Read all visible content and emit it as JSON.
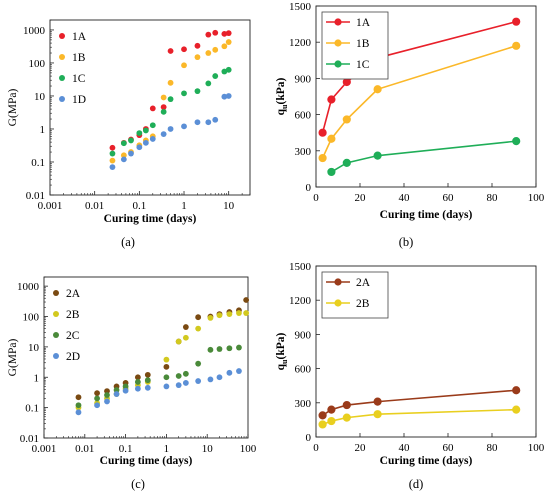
{
  "chart_data": [
    {
      "panel": "a",
      "caption": "(a)",
      "type": "scatter",
      "xscale": "log",
      "yscale": "log",
      "xlabel": "Curing time (days)",
      "ylabel": "G(MPa)",
      "xlim": [
        0.001,
        30
      ],
      "ylim": [
        0.01,
        2000
      ],
      "xticks": [
        0.001,
        0.01,
        0.1,
        1,
        10
      ],
      "xtick_labels": [
        "0.001",
        "0.01",
        "0.1",
        "1",
        "10"
      ],
      "yticks": [
        0.01,
        0.1,
        1,
        10,
        100,
        1000
      ],
      "ytick_labels": [
        "0.01",
        "0.1",
        "1",
        "10",
        "100",
        "1000"
      ],
      "legend_position": "top-left",
      "series": [
        {
          "name": "1A",
          "color": "#e8202a",
          "points": [
            [
              0.025,
              0.27
            ],
            [
              0.045,
              0.38
            ],
            [
              0.065,
              0.48
            ],
            [
              0.1,
              0.65
            ],
            [
              0.14,
              1.0
            ],
            [
              0.2,
              4.2
            ],
            [
              0.35,
              4.6
            ],
            [
              0.5,
              230
            ],
            [
              1.0,
              260
            ],
            [
              2.0,
              330
            ],
            [
              3.5,
              720
            ],
            [
              5,
              820
            ],
            [
              8,
              760
            ],
            [
              10,
              800
            ]
          ]
        },
        {
          "name": "1B",
          "color": "#fbb829",
          "points": [
            [
              0.025,
              0.11
            ],
            [
              0.045,
              0.16
            ],
            [
              0.065,
              0.2
            ],
            [
              0.1,
              0.32
            ],
            [
              0.14,
              0.45
            ],
            [
              0.2,
              0.6
            ],
            [
              0.35,
              9.0
            ],
            [
              0.5,
              25
            ],
            [
              1.0,
              85
            ],
            [
              2.0,
              150
            ],
            [
              3.5,
              200
            ],
            [
              5,
              250
            ],
            [
              8,
              320
            ],
            [
              10,
              430
            ]
          ]
        },
        {
          "name": "1C",
          "color": "#1fae58",
          "points": [
            [
              0.025,
              0.18
            ],
            [
              0.045,
              0.37
            ],
            [
              0.065,
              0.45
            ],
            [
              0.1,
              0.75
            ],
            [
              0.14,
              0.9
            ],
            [
              0.2,
              1.3
            ],
            [
              0.35,
              3.3
            ],
            [
              0.5,
              8.0
            ],
            [
              1.0,
              12
            ],
            [
              2.0,
              14
            ],
            [
              3.5,
              24
            ],
            [
              5,
              40
            ],
            [
              8,
              55
            ],
            [
              10,
              62
            ]
          ]
        },
        {
          "name": "1D",
          "color": "#5b8fd6",
          "points": [
            [
              0.025,
              0.07
            ],
            [
              0.045,
              0.12
            ],
            [
              0.065,
              0.18
            ],
            [
              0.1,
              0.28
            ],
            [
              0.14,
              0.38
            ],
            [
              0.2,
              0.5
            ],
            [
              0.35,
              0.7
            ],
            [
              0.5,
              1.0
            ],
            [
              1.0,
              1.2
            ],
            [
              2.0,
              1.6
            ],
            [
              3.5,
              1.6
            ],
            [
              5,
              1.9
            ],
            [
              8,
              9.5
            ],
            [
              10,
              10
            ]
          ]
        }
      ]
    },
    {
      "panel": "b",
      "caption": "(b)",
      "type": "line",
      "xlabel": "Curing time (days)",
      "ylabel": "q",
      "ylabel_sub": "u",
      "ylabel_suffix": "(kPa)",
      "xlim": [
        0,
        100
      ],
      "ylim": [
        0,
        1500
      ],
      "xticks": [
        0,
        20,
        40,
        60,
        80,
        100
      ],
      "xtick_labels": [
        "0",
        "20",
        "40",
        "60",
        "80",
        "100"
      ],
      "yticks": [
        0,
        300,
        600,
        900,
        1200,
        1500
      ],
      "ytick_labels": [
        "0",
        "300",
        "600",
        "900",
        "1200",
        "1500"
      ],
      "legend_position": "top-left",
      "series": [
        {
          "name": "1A",
          "color": "#e8202a",
          "x": [
            3,
            7,
            14,
            28,
            91
          ],
          "y": [
            450,
            725,
            870,
            1070,
            1370
          ]
        },
        {
          "name": "1B",
          "color": "#fbb829",
          "x": [
            3,
            7,
            14,
            28,
            91
          ],
          "y": [
            240,
            400,
            560,
            810,
            1170
          ]
        },
        {
          "name": "1C",
          "color": "#1fae58",
          "x": [
            7,
            14,
            28,
            91
          ],
          "y": [
            125,
            200,
            260,
            380
          ]
        }
      ]
    },
    {
      "panel": "c",
      "caption": "(c)",
      "type": "scatter",
      "xscale": "log",
      "yscale": "log",
      "xlabel": "Curing time (days)",
      "ylabel": "G(MPa)",
      "xlim": [
        0.001,
        100
      ],
      "ylim": [
        0.01,
        2000
      ],
      "xticks": [
        0.001,
        0.01,
        0.1,
        1,
        10,
        100
      ],
      "xtick_labels": [
        "0.001",
        "0.01",
        "0.1",
        "1",
        "10",
        "100"
      ],
      "yticks": [
        0.01,
        0.1,
        1,
        10,
        100,
        1000
      ],
      "ytick_labels": [
        "0.01",
        "0.1",
        "1",
        "10",
        "100",
        "1000"
      ],
      "legend_position": "top-left",
      "series": [
        {
          "name": "2A",
          "color": "#7a4a12",
          "points": [
            [
              0.007,
              0.22
            ],
            [
              0.02,
              0.3
            ],
            [
              0.035,
              0.35
            ],
            [
              0.06,
              0.5
            ],
            [
              0.1,
              0.65
            ],
            [
              0.2,
              1.0
            ],
            [
              0.35,
              1.2
            ],
            [
              1.0,
              2.2
            ],
            [
              2.0,
              15
            ],
            [
              3.0,
              45
            ],
            [
              6,
              95
            ],
            [
              12,
              100
            ],
            [
              20,
              120
            ],
            [
              35,
              140
            ],
            [
              60,
              160
            ],
            [
              90,
              350
            ]
          ]
        },
        {
          "name": "2B",
          "color": "#d2c91f",
          "points": [
            [
              0.007,
              0.1
            ],
            [
              0.02,
              0.14
            ],
            [
              0.035,
              0.2
            ],
            [
              0.06,
              0.28
            ],
            [
              0.1,
              0.42
            ],
            [
              0.2,
              0.55
            ],
            [
              0.35,
              0.7
            ],
            [
              1.0,
              3.8
            ],
            [
              2.0,
              15
            ],
            [
              3.0,
              20
            ],
            [
              6,
              40
            ],
            [
              12,
              90
            ],
            [
              20,
              110
            ],
            [
              35,
              120
            ],
            [
              60,
              130
            ],
            [
              90,
              130
            ]
          ]
        },
        {
          "name": "2C",
          "color": "#4a8a3a",
          "points": [
            [
              0.007,
              0.12
            ],
            [
              0.02,
              0.2
            ],
            [
              0.035,
              0.26
            ],
            [
              0.06,
              0.38
            ],
            [
              0.1,
              0.5
            ],
            [
              0.2,
              0.7
            ],
            [
              0.35,
              0.8
            ],
            [
              1.0,
              1.0
            ],
            [
              2.0,
              1.1
            ],
            [
              3.0,
              1.3
            ],
            [
              6,
              2.8
            ],
            [
              12,
              8.0
            ],
            [
              20,
              8.5
            ],
            [
              35,
              9.0
            ],
            [
              60,
              9.5
            ]
          ]
        },
        {
          "name": "2D",
          "color": "#5b8fd6",
          "points": [
            [
              0.007,
              0.07
            ],
            [
              0.02,
              0.12
            ],
            [
              0.035,
              0.16
            ],
            [
              0.06,
              0.28
            ],
            [
              0.1,
              0.36
            ],
            [
              0.2,
              0.42
            ],
            [
              0.35,
              0.45
            ],
            [
              1.0,
              0.5
            ],
            [
              2.0,
              0.55
            ],
            [
              3.0,
              0.65
            ],
            [
              6,
              0.75
            ],
            [
              12,
              0.85
            ],
            [
              20,
              1.0
            ],
            [
              35,
              1.4
            ],
            [
              60,
              1.6
            ]
          ]
        }
      ]
    },
    {
      "panel": "d",
      "caption": "(d)",
      "type": "line",
      "xlabel": "Curing time (days)",
      "ylabel": "q",
      "ylabel_sub": "u",
      "ylabel_suffix": "(kPa)",
      "xlim": [
        0,
        100
      ],
      "ylim": [
        0,
        1500
      ],
      "xticks": [
        0,
        20,
        40,
        60,
        80,
        100
      ],
      "xtick_labels": [
        "0",
        "20",
        "40",
        "60",
        "80",
        "100"
      ],
      "yticks": [
        0,
        300,
        600,
        900,
        1200,
        1500
      ],
      "ytick_labels": [
        "0",
        "300",
        "600",
        "900",
        "1200",
        "1500"
      ],
      "legend_position": "top-left",
      "series": [
        {
          "name": "2A",
          "color": "#9a3b1a",
          "x": [
            3,
            7,
            14,
            28,
            91
          ],
          "y": [
            190,
            240,
            280,
            310,
            410
          ]
        },
        {
          "name": "2B",
          "color": "#e9cf1f",
          "x": [
            3,
            7,
            14,
            28,
            91
          ],
          "y": [
            110,
            140,
            170,
            200,
            240
          ]
        }
      ]
    }
  ]
}
